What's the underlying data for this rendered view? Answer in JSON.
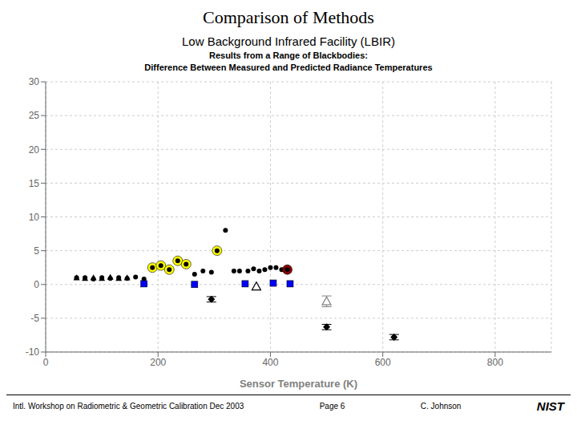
{
  "chart_data": {
    "type": "scatter",
    "title": "Comparison of Methods",
    "subtitle": [
      "Low Background Infrared Facility (LBIR)",
      "Results from a Range of Blackbodies:",
      "Difference Between Measured and Predicted Radiance Temperatures"
    ],
    "x_label": "Sensor Temperature (K)",
    "annotations": [
      "Intl. Workshop on Radiometric & Geometric Calibration  Dec 2003",
      "Page 6",
      "C. Johnson",
      "NIST"
    ],
    "xlim": [
      0,
      900
    ],
    "ylim": [
      -10,
      30
    ],
    "xticks": [
      0,
      200,
      400,
      600,
      800
    ],
    "yticks": [
      -10,
      -5,
      0,
      5,
      10,
      15,
      20,
      25,
      30
    ],
    "grid": true,
    "series": [
      {
        "marker": "circle",
        "color": "black",
        "x": [
          55,
          70,
          85,
          100,
          115,
          130,
          145,
          160,
          175,
          190,
          205,
          220,
          235,
          250,
          265,
          280,
          295,
          305,
          320,
          335,
          345,
          360,
          370,
          380,
          390,
          400,
          410,
          420,
          430,
          500,
          620
        ],
        "values": [
          1.0,
          1.0,
          0.8,
          1.0,
          0.9,
          1.0,
          0.9,
          1.1,
          0.8,
          2.5,
          2.8,
          2.2,
          3.5,
          3.0,
          1.5,
          2.0,
          1.8,
          5.0,
          8.0,
          2.0,
          2.0,
          2.0,
          2.3,
          2.0,
          2.2,
          2.5,
          2.5,
          2.2,
          2.2,
          -6.3,
          -7.8
        ]
      },
      {
        "marker": "ringed_circle",
        "color": "yellow",
        "x": [
          190,
          205,
          220,
          235,
          250,
          305
        ],
        "values": [
          2.5,
          2.8,
          2.2,
          3.5,
          3.0,
          5.0
        ]
      },
      {
        "marker": "triangle",
        "color": "black",
        "x": [
          55,
          70,
          85,
          100,
          115,
          130,
          145
        ],
        "values": [
          1.0,
          0.9,
          1.0,
          0.9,
          1.1,
          0.9,
          1.0
        ]
      },
      {
        "marker": "open_triangle",
        "color": "black",
        "x": [
          375
        ],
        "values": [
          -0.3
        ]
      },
      {
        "marker": "open_triangle",
        "color": "gray",
        "x": [
          500
        ],
        "values": [
          -2.5
        ],
        "errors": [
          0.8
        ]
      },
      {
        "marker": "square",
        "color": "blue",
        "x": [
          175,
          265,
          355,
          405,
          435
        ],
        "values": [
          0.1,
          0.0,
          0.1,
          0.2,
          0.1
        ]
      },
      {
        "marker": "diamond",
        "color": "black",
        "x": [
          295,
          500,
          620
        ],
        "values": [
          -2.2,
          -6.3,
          -7.8
        ],
        "errors": [
          0.4,
          0.4,
          0.4
        ]
      },
      {
        "marker": "ringed_circle",
        "color": "darkred",
        "x": [
          430
        ],
        "values": [
          2.2
        ]
      }
    ]
  }
}
